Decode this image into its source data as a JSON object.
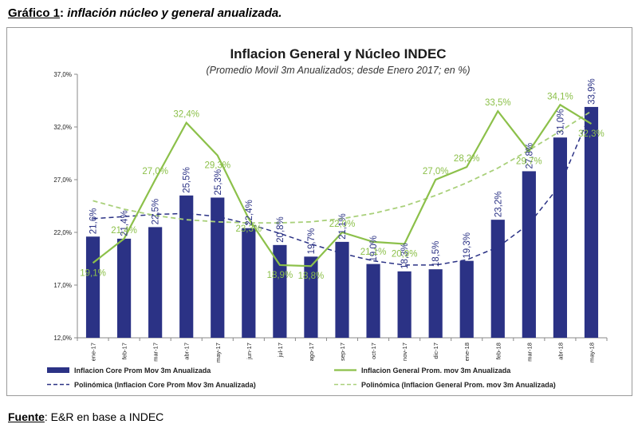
{
  "caption": {
    "label": "Gráfico 1",
    "sep": ": ",
    "text": "inflación núcleo y general anualizada."
  },
  "source": {
    "label": "Fuente",
    "sep": ": ",
    "text": "E&R en base a INDEC"
  },
  "chart_data": {
    "type": "bar",
    "title": "Inflacion General y Núcleo INDEC",
    "subtitle": "(Promedio Movil 3m Anualizados; desde Enero 2017; en %)",
    "categories": [
      "ene-17",
      "feb-17",
      "mar-17",
      "abr-17",
      "may-17",
      "jun-17",
      "jul-17",
      "ago-17",
      "sep-17",
      "oct-17",
      "nov-17",
      "dic-17",
      "ene-18",
      "feb-18",
      "mar-18",
      "abr-18",
      "may-18"
    ],
    "ylim": [
      12,
      37
    ],
    "yticks": [
      "12,0%",
      "17,0%",
      "22,0%",
      "27,0%",
      "32,0%",
      "37,0%"
    ],
    "ytick_values": [
      12,
      17,
      22,
      27,
      32,
      37
    ],
    "series": [
      {
        "name": "Inflacion Core Prom Mov 3m Anualizada",
        "kind": "bar",
        "color": "#2b3285",
        "values": [
          21.6,
          21.4,
          22.5,
          25.5,
          25.3,
          22.4,
          20.8,
          19.7,
          21.1,
          19.0,
          18.3,
          18.5,
          19.3,
          23.2,
          27.8,
          31.0,
          33.9
        ],
        "labels": [
          "21,6%",
          "21,4%",
          "22,5%",
          "25,5%",
          "25,3%",
          "22,4%",
          "20,8%",
          "19,7%",
          "21,1%",
          "19,0%",
          "18,3%",
          "18,5%",
          "19,3%",
          "23,2%",
          "27,8%",
          "31,0%",
          "33,9%"
        ]
      },
      {
        "name": "Inflacion General Prom. mov 3m Anualizada",
        "kind": "line",
        "color": "#8cc04a",
        "values": [
          19.1,
          21.4,
          27.0,
          32.4,
          29.3,
          23.3,
          18.9,
          18.8,
          22.0,
          21.1,
          20.9,
          27.0,
          28.2,
          33.5,
          29.7,
          34.1,
          32.3
        ],
        "labels": [
          "19,1%",
          "21,4%",
          "27,0%",
          "32,4%",
          "29,3%",
          "23,3%",
          "18,9%",
          "18,8%",
          "22,0%",
          "21,1%",
          "20,9%",
          "27,0%",
          "28,2%",
          "33,5%",
          "29,7%",
          "34,1%",
          "32,3%"
        ]
      },
      {
        "name": "Polinómica (Inflacion Core Prom Mov 3m Anualizada)",
        "kind": "trend",
        "color": "#2b3285",
        "values": [
          23.3,
          23.5,
          23.7,
          23.8,
          23.5,
          22.8,
          21.9,
          20.9,
          20.0,
          19.3,
          18.9,
          18.9,
          19.4,
          20.6,
          22.8,
          26.5,
          33.5
        ]
      },
      {
        "name": "Polinómica (Inflacion General Prom. mov 3m Anualizada)",
        "kind": "trend",
        "color": "#a9d07a",
        "values": [
          25.0,
          24.2,
          23.6,
          23.2,
          23.0,
          22.9,
          22.9,
          23.0,
          23.3,
          23.8,
          24.5,
          25.5,
          26.7,
          28.1,
          29.8,
          31.6,
          33.5
        ]
      }
    ],
    "grid": false,
    "legend_position": "bottom"
  }
}
